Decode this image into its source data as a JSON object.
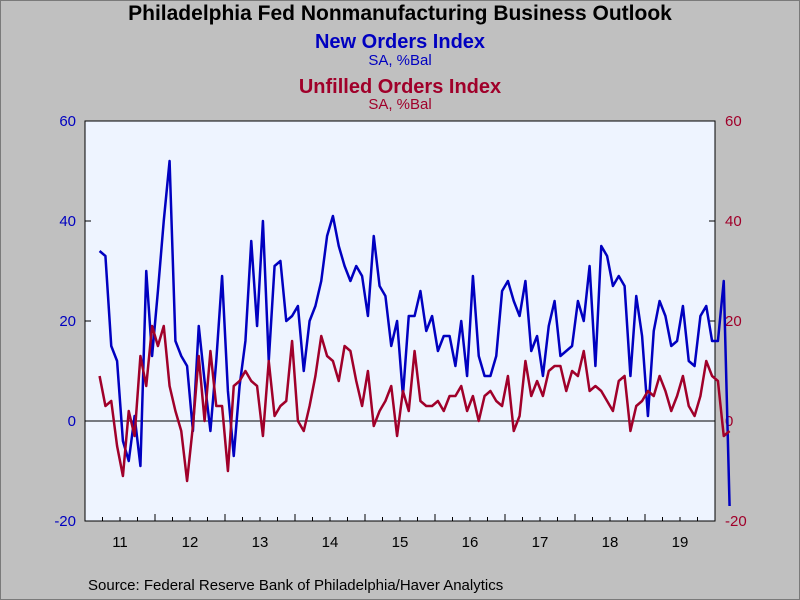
{
  "title": "Philadelphia Fed Nonmanufacturing Business Outlook",
  "source": "Source:  Federal Reserve Bank of Philadelphia/Haver Analytics",
  "colors": {
    "new_orders": "#0000c0",
    "unfilled_orders": "#a0002a",
    "plot_bg": "#eef4ff",
    "page_bg": "#c0c0c0"
  },
  "chart_data": {
    "type": "line",
    "left_axis": {
      "ticks": [
        60,
        40,
        20,
        0,
        -20
      ],
      "labels": [
        "60",
        "40",
        "20",
        "0",
        "-20"
      ],
      "range": [
        -20,
        60
      ],
      "color": "#0000c0"
    },
    "right_axis": {
      "ticks": [
        60,
        40,
        20,
        0,
        -20
      ],
      "labels": [
        "60",
        "40",
        "20",
        "0",
        "-20"
      ],
      "range": [
        -20,
        60
      ],
      "color": "#a0002a"
    },
    "x_labels": [
      "11",
      "12",
      "13",
      "14",
      "15",
      "16",
      "17",
      "18",
      "19"
    ],
    "x_start_year": 2011,
    "x_end_year": 2020,
    "x_first_month": 3,
    "zero_line": true,
    "series": [
      {
        "name": "New Orders Index",
        "unit": "SA, %Bal",
        "color": "#0000c0",
        "axis": "left",
        "values": [
          34,
          33,
          15,
          12,
          -4,
          -8,
          1,
          -9,
          30,
          13,
          26,
          40,
          52,
          16,
          13,
          11,
          -2,
          19,
          8,
          -2,
          12,
          29,
          6,
          -7,
          7,
          16,
          36,
          19,
          40,
          12,
          31,
          32,
          20,
          21,
          23,
          10,
          20,
          23,
          28,
          37,
          41,
          35,
          31,
          28,
          31,
          29,
          21,
          37,
          27,
          25,
          15,
          20,
          5,
          21,
          21,
          26,
          18,
          21,
          14,
          17,
          17,
          11,
          20,
          9,
          29,
          13,
          9,
          9,
          13,
          26,
          28,
          24,
          21,
          28,
          14,
          17,
          9,
          19,
          24,
          13,
          14,
          15,
          24,
          20,
          31,
          11,
          35,
          33,
          27,
          29,
          27,
          9,
          25,
          17,
          1,
          18,
          24,
          21,
          15,
          16,
          23,
          12,
          11,
          21,
          23,
          16,
          16,
          28,
          -17
        ]
      },
      {
        "name": "Unfilled Orders Index",
        "unit": "SA, %Bal",
        "color": "#a0002a",
        "axis": "right",
        "values": [
          9,
          3,
          4,
          -5,
          -11,
          2,
          -3,
          13,
          7,
          19,
          15,
          19,
          7,
          2,
          -2,
          -12,
          -1,
          13,
          0,
          14,
          3,
          3,
          -10,
          7,
          8,
          10,
          8,
          7,
          -3,
          12,
          1,
          3,
          4,
          16,
          0,
          -2,
          3,
          9,
          17,
          13,
          12,
          8,
          15,
          14,
          8,
          3,
          10,
          -1,
          2,
          4,
          7,
          -3,
          6,
          2,
          14,
          4,
          3,
          3,
          4,
          2,
          5,
          5,
          7,
          2,
          5,
          0,
          5,
          6,
          4,
          3,
          9,
          -2,
          1,
          12,
          5,
          8,
          5,
          10,
          11,
          11,
          6,
          10,
          9,
          14,
          6,
          7,
          6,
          4,
          2,
          8,
          9,
          -2,
          3,
          4,
          6,
          5,
          9,
          6,
          2,
          5,
          9,
          3,
          1,
          5,
          12,
          9,
          8,
          -3,
          -2
        ]
      }
    ]
  }
}
